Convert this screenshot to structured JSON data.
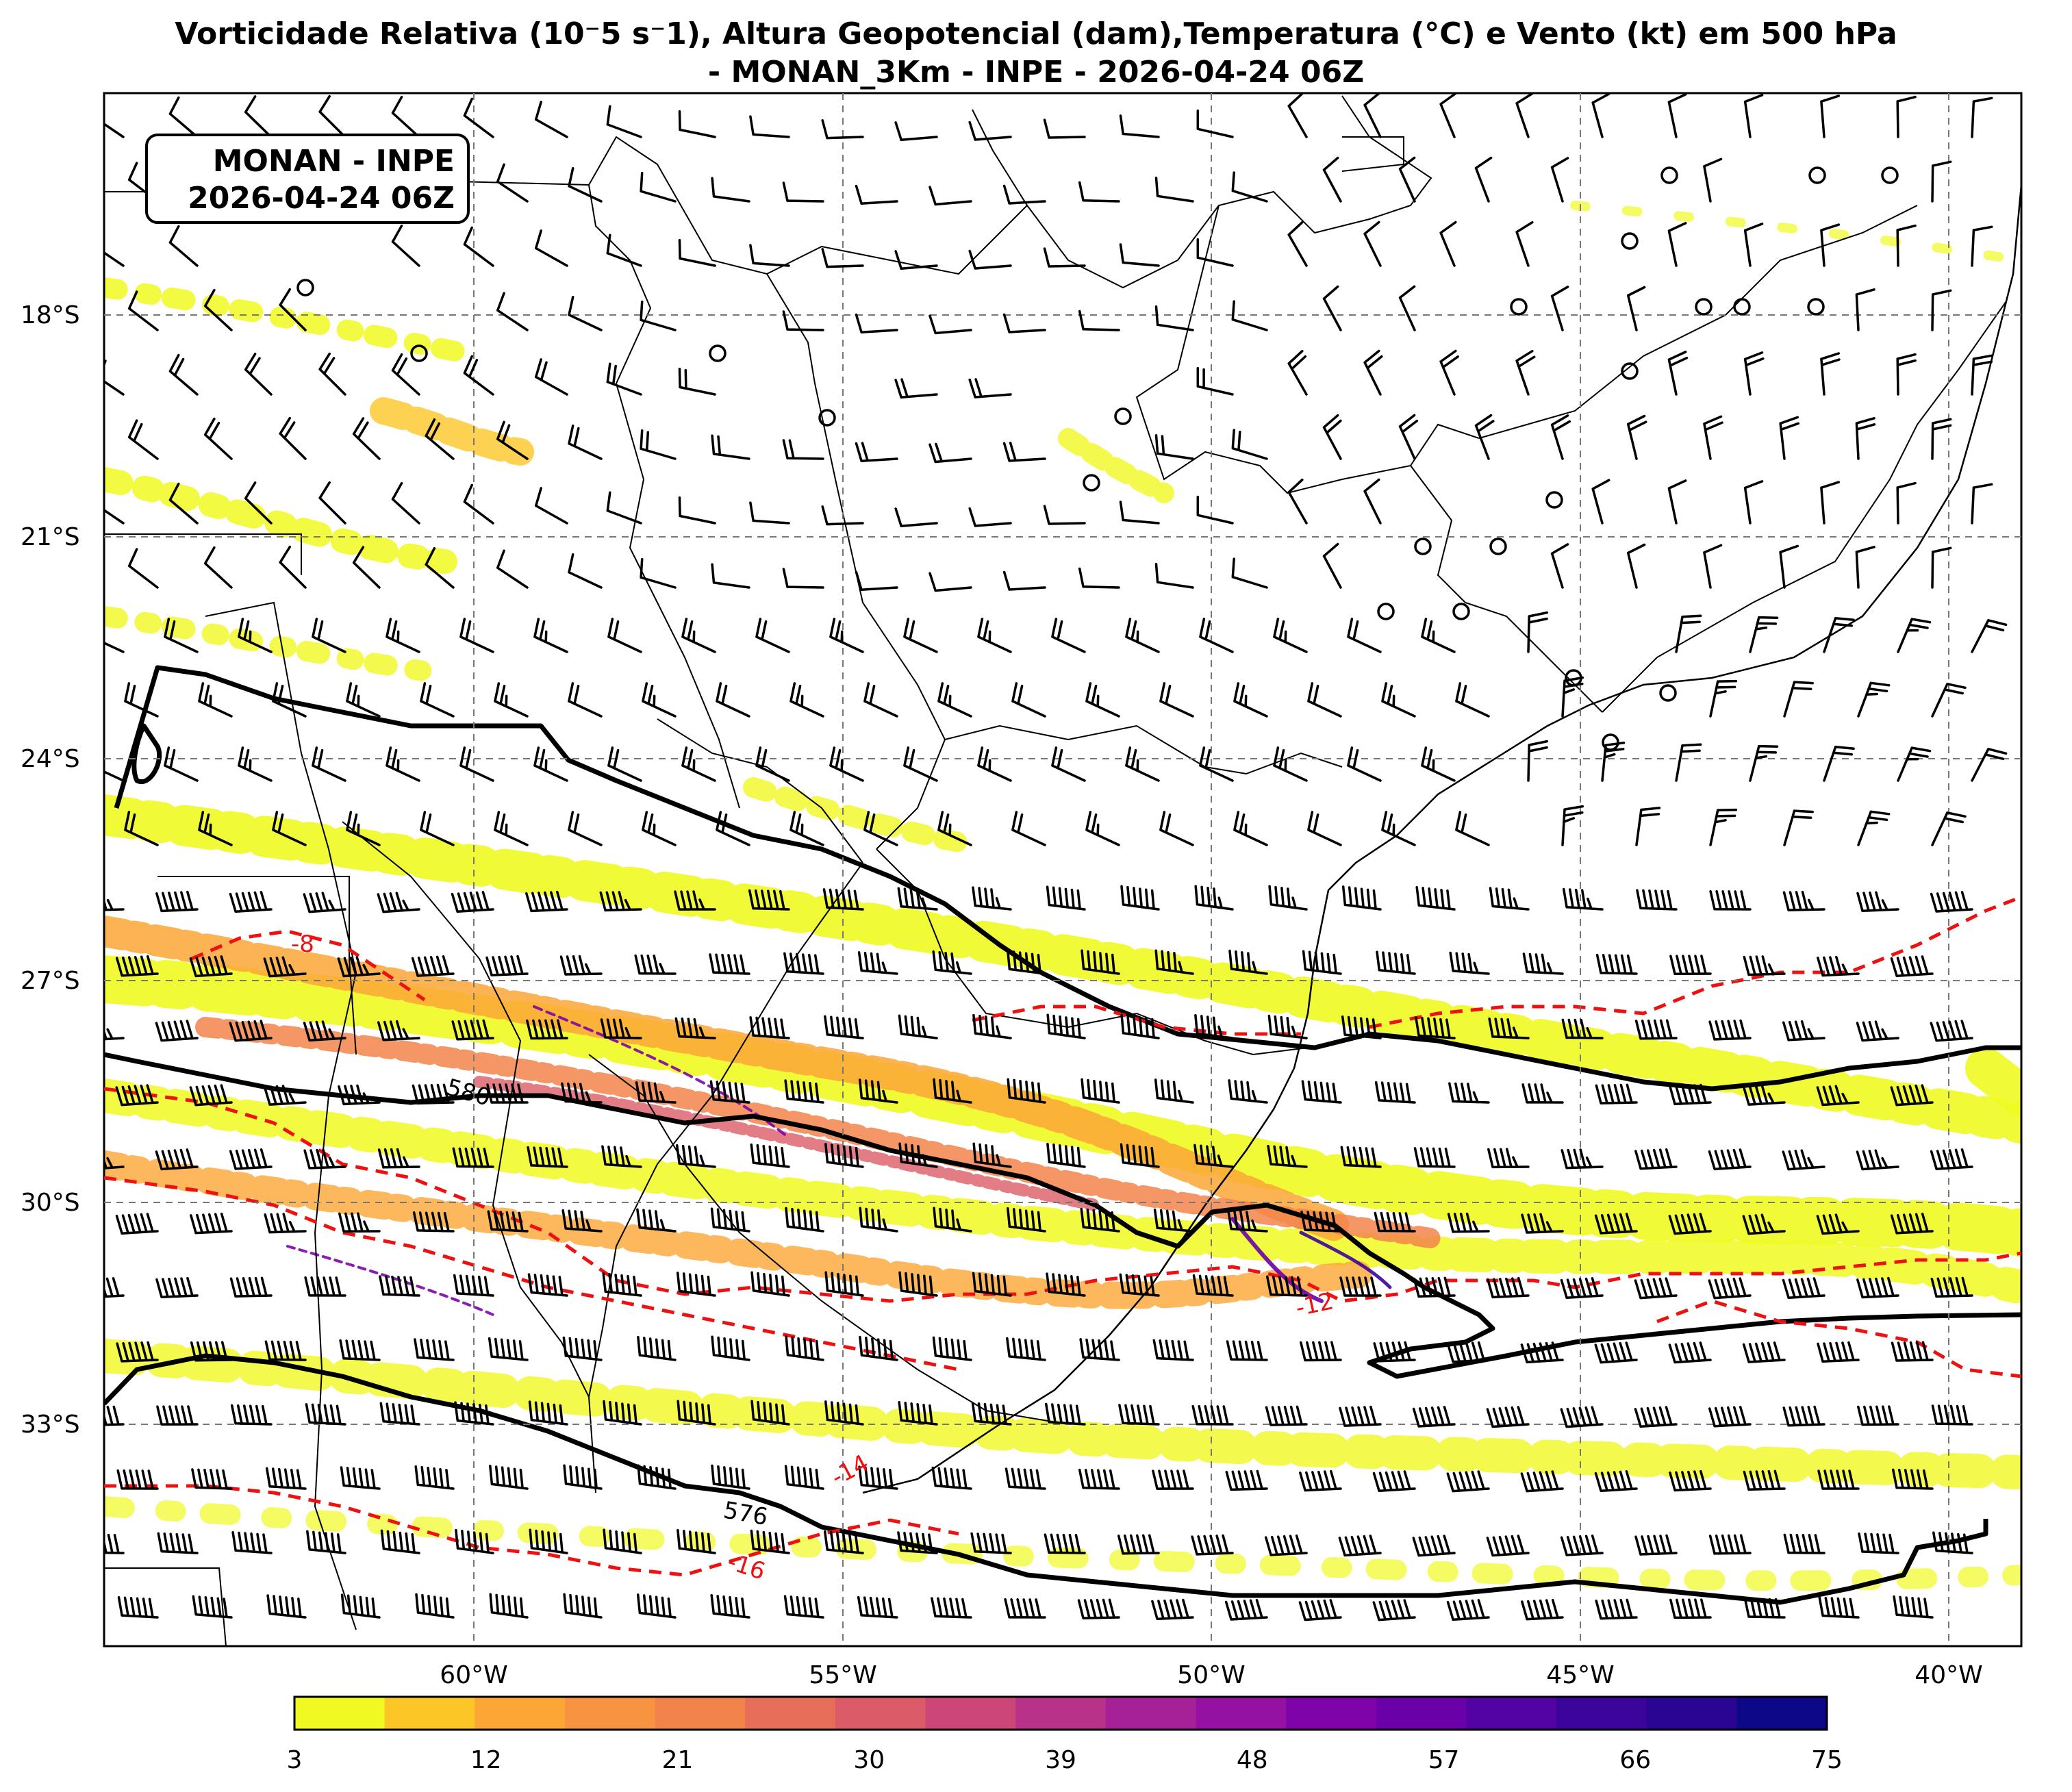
{
  "title": {
    "line1": "Vorticidade Relativa (10⁻5 s⁻1), Altura Geopotencial (dam),Temperatura (°C) e Vento (kt) em 500 hPa",
    "line2": "- MONAN_3Km - INPE - 2026-04-24 06Z"
  },
  "stamp": {
    "line1": "MONAN - INPE",
    "line2": "2026-04-24 06Z"
  },
  "map": {
    "lon_range": [
      -65,
      -39
    ],
    "lat_range": [
      -36,
      -15
    ],
    "lon_ticks": [
      {
        "value": -60,
        "label": "60°W"
      },
      {
        "value": -55,
        "label": "55°W"
      },
      {
        "value": -50,
        "label": "50°W"
      },
      {
        "value": -45,
        "label": "45°W"
      },
      {
        "value": -40,
        "label": "40°W"
      }
    ],
    "lat_ticks": [
      {
        "value": -18,
        "label": "18°S"
      },
      {
        "value": -21,
        "label": "21°S"
      },
      {
        "value": -24,
        "label": "24°S"
      },
      {
        "value": -27,
        "label": "27°S"
      },
      {
        "value": -30,
        "label": "30°S"
      },
      {
        "value": -33,
        "label": "33°S"
      }
    ],
    "gridlines": true
  },
  "contours": {
    "height_labels": [
      "580",
      "576"
    ],
    "temperature_labels": [
      "-8",
      "-12",
      "-14",
      "-16"
    ],
    "height_color": "#000000",
    "temperature_color": "#ee1111"
  },
  "colorbar": {
    "ticks": [
      "3",
      "12",
      "21",
      "30",
      "39",
      "48",
      "57",
      "66",
      "75"
    ],
    "colors": [
      "#f0f921",
      "#fdc627",
      "#fca636",
      "#f89441",
      "#f2844b",
      "#e76f5a",
      "#db5c68",
      "#cc4778",
      "#b83289",
      "#a62098",
      "#9511a1",
      "#7e03a8",
      "#6a00a8",
      "#5302a3",
      "#3b049a",
      "#2a0593",
      "#0d0887"
    ]
  }
}
